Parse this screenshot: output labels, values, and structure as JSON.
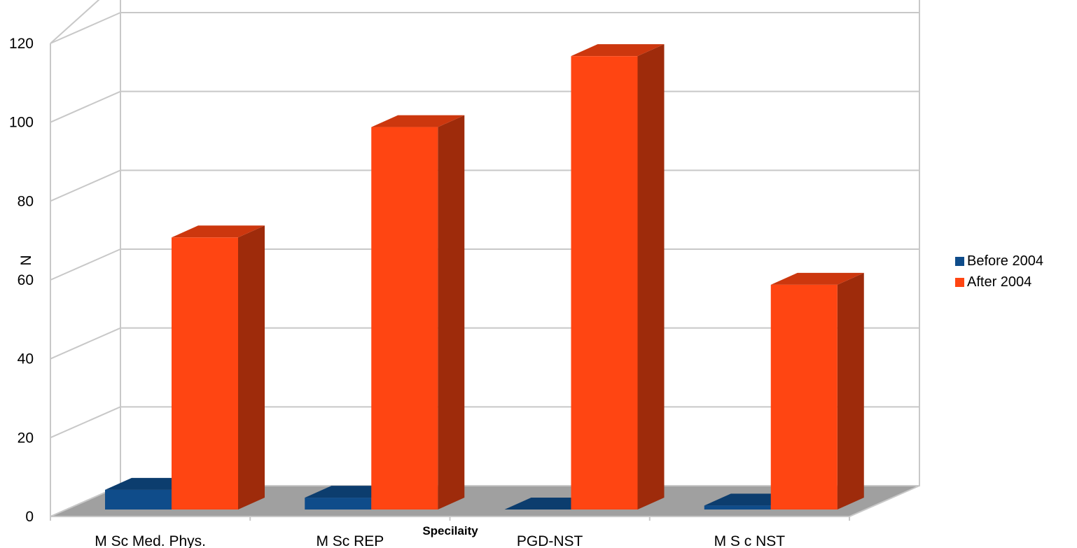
{
  "chart_data": {
    "type": "bar",
    "title": "",
    "xlabel": "Specilaity",
    "ylabel": "N",
    "ylim": [
      0,
      120
    ],
    "yticks": [
      0,
      20,
      40,
      60,
      80,
      100,
      120
    ],
    "categories": [
      "M Sc Med. Phys.",
      "M Sc REP",
      "PGD-NST",
      "M S c NST"
    ],
    "series": [
      {
        "name": "Before 2004",
        "values": [
          5,
          3,
          0,
          1
        ],
        "color": "#0F4C8A"
      },
      {
        "name": "After 2004",
        "values": [
          69,
          97,
          115,
          57
        ],
        "color": "#FF4512"
      }
    ],
    "legend_position": "right",
    "grid": true,
    "three_d": true
  }
}
